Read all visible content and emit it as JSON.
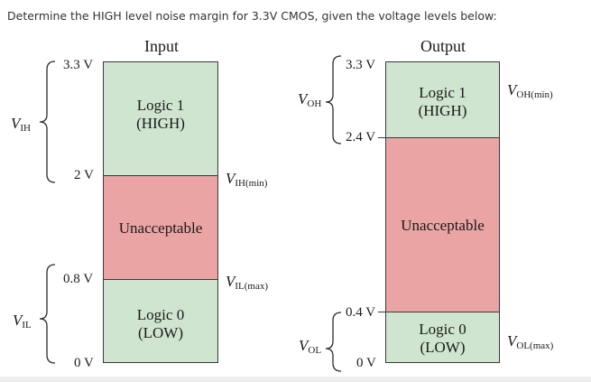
{
  "question": "Determine the HIGH level noise margin for 3.3V CMOS, given the voltage levels below:",
  "input": {
    "heading": "Input",
    "levels": {
      "top": "3.3 V",
      "high_min": "2 V",
      "low_max": "0.8 V",
      "bottom": "0 V"
    },
    "regions": {
      "high_line1": "Logic 1",
      "high_line2": "(HIGH)",
      "middle": "Unacceptable",
      "low_line1": "Logic 0",
      "low_line2": "(LOW)"
    },
    "labels": {
      "vih_main": "V",
      "vih_sub": "IH",
      "vil_main": "V",
      "vil_sub": "IL",
      "vih_min_main": "V",
      "vih_min_sub": "IH(min)",
      "vil_max_main": "V",
      "vil_max_sub": "IL(max)"
    }
  },
  "output": {
    "heading": "Output",
    "levels": {
      "top": "3.3 V",
      "high_min": "2.4 V",
      "low_max": "0.4 V",
      "bottom": "0 V"
    },
    "regions": {
      "high_line1": "Logic 1",
      "high_line2": "(HIGH)",
      "middle": "Unacceptable",
      "low_line1": "Logic 0",
      "low_line2": "(LOW)"
    },
    "labels": {
      "voh_main": "V",
      "voh_sub": "OH",
      "vol_main": "V",
      "vol_sub": "OL",
      "voh_min_main": "V",
      "voh_min_sub": "OH(min)",
      "vol_max_main": "V",
      "vol_max_sub": "OL(max)"
    }
  },
  "colors": {
    "logic_region": "#cfe5cf",
    "unacceptable_region": "#eaa4a4"
  }
}
